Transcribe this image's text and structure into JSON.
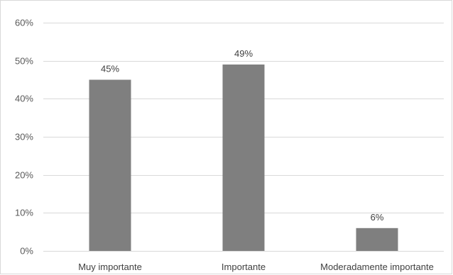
{
  "chart_data": {
    "type": "bar",
    "categories": [
      "Muy importante",
      "Importante",
      "Moderadamente importante"
    ],
    "values": [
      45,
      49,
      6
    ],
    "data_labels": [
      "45%",
      "49%",
      "6%"
    ],
    "ylim": [
      0,
      60
    ],
    "y_ticks": [
      0,
      10,
      20,
      30,
      40,
      50,
      60
    ],
    "y_tick_labels": [
      "0%",
      "10%",
      "20%",
      "30%",
      "40%",
      "50%",
      "60%"
    ],
    "title": "",
    "xlabel": "",
    "ylabel": "",
    "grid": true,
    "legend": "none",
    "bar_color": "#7f7f7f",
    "grid_color": "#d9d9d9"
  }
}
